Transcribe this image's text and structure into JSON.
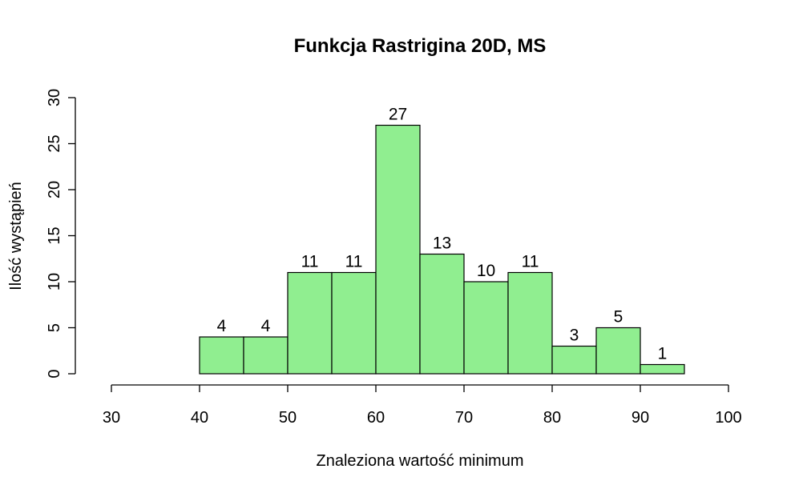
{
  "chart_data": {
    "type": "bar",
    "title": "Funkcja Rastrigina 20D, MS",
    "xlabel": "Znaleziona wartość minimum",
    "ylabel": "Ilość wystąpień",
    "bins": [
      {
        "from": 40,
        "to": 45,
        "value": 4
      },
      {
        "from": 45,
        "to": 50,
        "value": 4
      },
      {
        "from": 50,
        "to": 55,
        "value": 11
      },
      {
        "from": 55,
        "to": 60,
        "value": 11
      },
      {
        "from": 60,
        "to": 65,
        "value": 27
      },
      {
        "from": 65,
        "to": 70,
        "value": 13
      },
      {
        "from": 70,
        "to": 75,
        "value": 10
      },
      {
        "from": 75,
        "to": 80,
        "value": 11
      },
      {
        "from": 80,
        "to": 85,
        "value": 3
      },
      {
        "from": 85,
        "to": 90,
        "value": 5
      },
      {
        "from": 90,
        "to": 95,
        "value": 1
      }
    ],
    "xlim": [
      30,
      100
    ],
    "ylim": [
      0,
      30
    ],
    "xticks": [
      30,
      40,
      50,
      60,
      70,
      80,
      90,
      100
    ],
    "yticks": [
      0,
      5,
      10,
      15,
      20,
      25,
      30
    ],
    "bar_color": "#90ee90",
    "grid": false
  }
}
